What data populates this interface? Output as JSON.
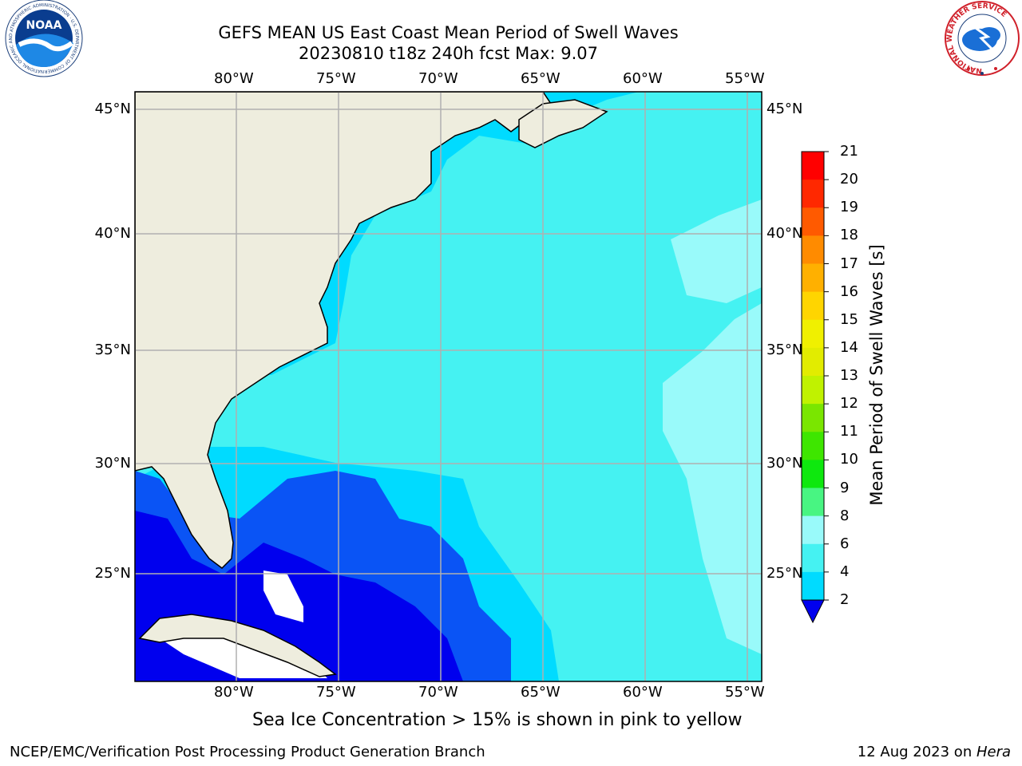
{
  "title": {
    "line1": "GEFS MEAN US East Coast Mean Period of Swell Waves",
    "line2": "20230810 t18z 240h fcst   Max: 9.07"
  },
  "map": {
    "lon_labels": [
      "80°W",
      "75°W",
      "70°W",
      "65°W",
      "60°W",
      "55°W"
    ],
    "lat_labels": [
      "45°N",
      "40°N",
      "35°N",
      "30°N",
      "25°N"
    ],
    "land_color": "#eeedde",
    "grid_color": "#b0b0b0"
  },
  "colorbar": {
    "label": "Mean Period of Swell Waves [s]",
    "ticks": [
      "2",
      "4",
      "6",
      "8",
      "9",
      "10",
      "11",
      "12",
      "13",
      "14",
      "15",
      "16",
      "17",
      "18",
      "19",
      "20",
      "21"
    ],
    "colors": [
      "#0a54f5",
      "#00dbff",
      "#45f2f2",
      "#99fafa",
      "#48f582",
      "#0ee80e",
      "#3ee600",
      "#7ae600",
      "#c0f200",
      "#e2ec00",
      "#f0f000",
      "#ffd500",
      "#ffb000",
      "#ff8b00",
      "#ff5a00",
      "#ff2800",
      "#ff0000"
    ],
    "extend_color": "#0000ee"
  },
  "logos": {
    "noaa_text": "NOAA",
    "noaa_ring": "NATIONAL OCEANIC AND ATMOSPHERIC ADMINISTRATION · U.S. DEPARTMENT OF COMMERCE",
    "nws_ring": "NATIONAL WEATHER SERVICE"
  },
  "notes": {
    "sea_ice": "Sea Ice Concentration > 15% is shown in pink to yellow"
  },
  "footer": {
    "left": "NCEP/EMC/Verification Post Processing Product Generation Branch",
    "right_date": "12 Aug 2023 on ",
    "right_host": "Hera"
  }
}
